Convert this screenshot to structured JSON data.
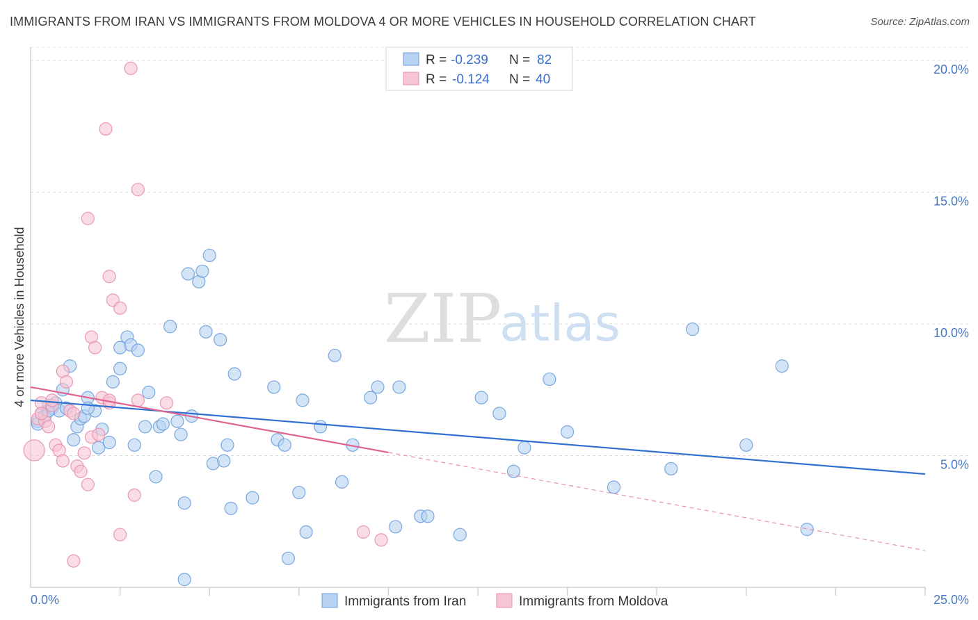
{
  "title": "IMMIGRANTS FROM IRAN VS IMMIGRANTS FROM MOLDOVA 4 OR MORE VEHICLES IN HOUSEHOLD CORRELATION CHART",
  "source": "Source: ZipAtlas.com",
  "watermark": {
    "zip": "ZIP",
    "atlas": "atlas"
  },
  "legend": {
    "r_label": "R =",
    "n_label": "N =",
    "rows": [
      {
        "r": "-0.239",
        "n": "82"
      },
      {
        "r": "-0.124",
        "n": "40"
      }
    ]
  },
  "chart_data": {
    "type": "scatter",
    "xlabel": "",
    "ylabel": "4 or more Vehicles in Household",
    "xlim": [
      0,
      25
    ],
    "ylim": [
      0,
      20.5
    ],
    "x_tick_labels": [
      "0.0%",
      "25.0%"
    ],
    "y_ticks": [
      5,
      10,
      15,
      20
    ],
    "y_tick_labels": [
      "5.0%",
      "10.0%",
      "15.0%",
      "20.0%"
    ],
    "grid": true,
    "series": [
      {
        "name": "Immigrants from Iran",
        "color": "#6b9edc",
        "fill": "#b8d2f2",
        "trend": {
          "x": [
            0,
            25
          ],
          "y": [
            7.1,
            4.3
          ],
          "dashed_from": null
        },
        "points": [
          [
            0.2,
            6.3
          ],
          [
            0.3,
            6.6
          ],
          [
            0.4,
            6.5
          ],
          [
            0.5,
            6.9
          ],
          [
            0.6,
            6.8
          ],
          [
            0.7,
            7.0
          ],
          [
            0.8,
            6.7
          ],
          [
            0.9,
            7.5
          ],
          [
            1.0,
            6.8
          ],
          [
            1.1,
            8.4
          ],
          [
            1.2,
            5.6
          ],
          [
            1.3,
            6.1
          ],
          [
            1.4,
            6.4
          ],
          [
            1.5,
            6.5
          ],
          [
            1.6,
            7.2
          ],
          [
            1.8,
            6.7
          ],
          [
            1.9,
            5.3
          ],
          [
            2.0,
            6.0
          ],
          [
            2.2,
            5.5
          ],
          [
            2.3,
            7.8
          ],
          [
            2.5,
            8.3
          ],
          [
            2.5,
            9.1
          ],
          [
            2.7,
            9.5
          ],
          [
            2.8,
            9.2
          ],
          [
            3.0,
            9.0
          ],
          [
            2.9,
            5.4
          ],
          [
            3.2,
            6.1
          ],
          [
            3.3,
            7.4
          ],
          [
            3.5,
            4.2
          ],
          [
            3.6,
            6.1
          ],
          [
            3.7,
            6.2
          ],
          [
            3.9,
            9.9
          ],
          [
            4.1,
            6.3
          ],
          [
            4.2,
            5.8
          ],
          [
            4.3,
            3.2
          ],
          [
            4.3,
            0.3
          ],
          [
            4.4,
            11.9
          ],
          [
            4.5,
            6.5
          ],
          [
            4.7,
            11.6
          ],
          [
            4.8,
            12.0
          ],
          [
            4.9,
            9.7
          ],
          [
            5.0,
            12.6
          ],
          [
            5.1,
            4.7
          ],
          [
            5.3,
            9.4
          ],
          [
            5.4,
            4.8
          ],
          [
            5.5,
            5.4
          ],
          [
            5.6,
            3.0
          ],
          [
            5.7,
            8.1
          ],
          [
            6.2,
            3.4
          ],
          [
            6.8,
            7.6
          ],
          [
            6.9,
            5.6
          ],
          [
            7.1,
            5.4
          ],
          [
            7.2,
            1.1
          ],
          [
            7.5,
            3.6
          ],
          [
            7.6,
            7.1
          ],
          [
            7.7,
            2.1
          ],
          [
            8.1,
            6.1
          ],
          [
            8.5,
            8.8
          ],
          [
            8.7,
            4.0
          ],
          [
            9.0,
            5.4
          ],
          [
            9.5,
            7.2
          ],
          [
            9.7,
            7.6
          ],
          [
            10.3,
            7.6
          ],
          [
            10.2,
            2.3
          ],
          [
            10.9,
            2.7
          ],
          [
            11.1,
            2.7
          ],
          [
            12.0,
            2.0
          ],
          [
            12.6,
            7.2
          ],
          [
            13.1,
            6.6
          ],
          [
            13.5,
            4.4
          ],
          [
            13.8,
            5.3
          ],
          [
            14.5,
            7.9
          ],
          [
            15.0,
            5.9
          ],
          [
            16.3,
            3.8
          ],
          [
            17.9,
            4.5
          ],
          [
            18.5,
            9.8
          ],
          [
            20.0,
            5.4
          ],
          [
            21.0,
            8.4
          ],
          [
            21.7,
            2.2
          ],
          [
            0.2,
            6.2
          ],
          [
            0.5,
            6.7
          ],
          [
            1.6,
            6.8
          ]
        ]
      },
      {
        "name": "Immigrants from Moldova",
        "color": "#e890ab",
        "fill": "#f6c5d4",
        "trend": {
          "x": [
            0,
            25
          ],
          "y": [
            7.6,
            1.4
          ],
          "dashed_from": 10
        },
        "points": [
          [
            0.1,
            5.2
          ],
          [
            0.2,
            6.4
          ],
          [
            0.3,
            7.0
          ],
          [
            0.4,
            6.3
          ],
          [
            0.5,
            6.1
          ],
          [
            0.6,
            6.9
          ],
          [
            0.7,
            5.4
          ],
          [
            0.8,
            5.2
          ],
          [
            0.9,
            4.8
          ],
          [
            0.9,
            8.2
          ],
          [
            1.0,
            7.8
          ],
          [
            1.1,
            6.7
          ],
          [
            1.2,
            6.6
          ],
          [
            1.2,
            1.0
          ],
          [
            1.3,
            4.6
          ],
          [
            1.4,
            4.4
          ],
          [
            1.5,
            5.1
          ],
          [
            1.6,
            3.9
          ],
          [
            1.6,
            14.0
          ],
          [
            1.7,
            5.7
          ],
          [
            1.7,
            9.5
          ],
          [
            1.8,
            9.1
          ],
          [
            1.9,
            5.8
          ],
          [
            2.0,
            7.2
          ],
          [
            2.1,
            17.4
          ],
          [
            2.2,
            7.0
          ],
          [
            2.2,
            7.1
          ],
          [
            2.2,
            11.8
          ],
          [
            2.3,
            10.9
          ],
          [
            2.5,
            10.6
          ],
          [
            2.5,
            2.0
          ],
          [
            2.8,
            19.7
          ],
          [
            2.9,
            3.5
          ],
          [
            3.0,
            15.1
          ],
          [
            3.0,
            7.1
          ],
          [
            3.8,
            7.0
          ],
          [
            0.3,
            6.6
          ],
          [
            9.3,
            2.1
          ],
          [
            9.8,
            1.8
          ],
          [
            0.6,
            7.1
          ]
        ]
      }
    ]
  }
}
